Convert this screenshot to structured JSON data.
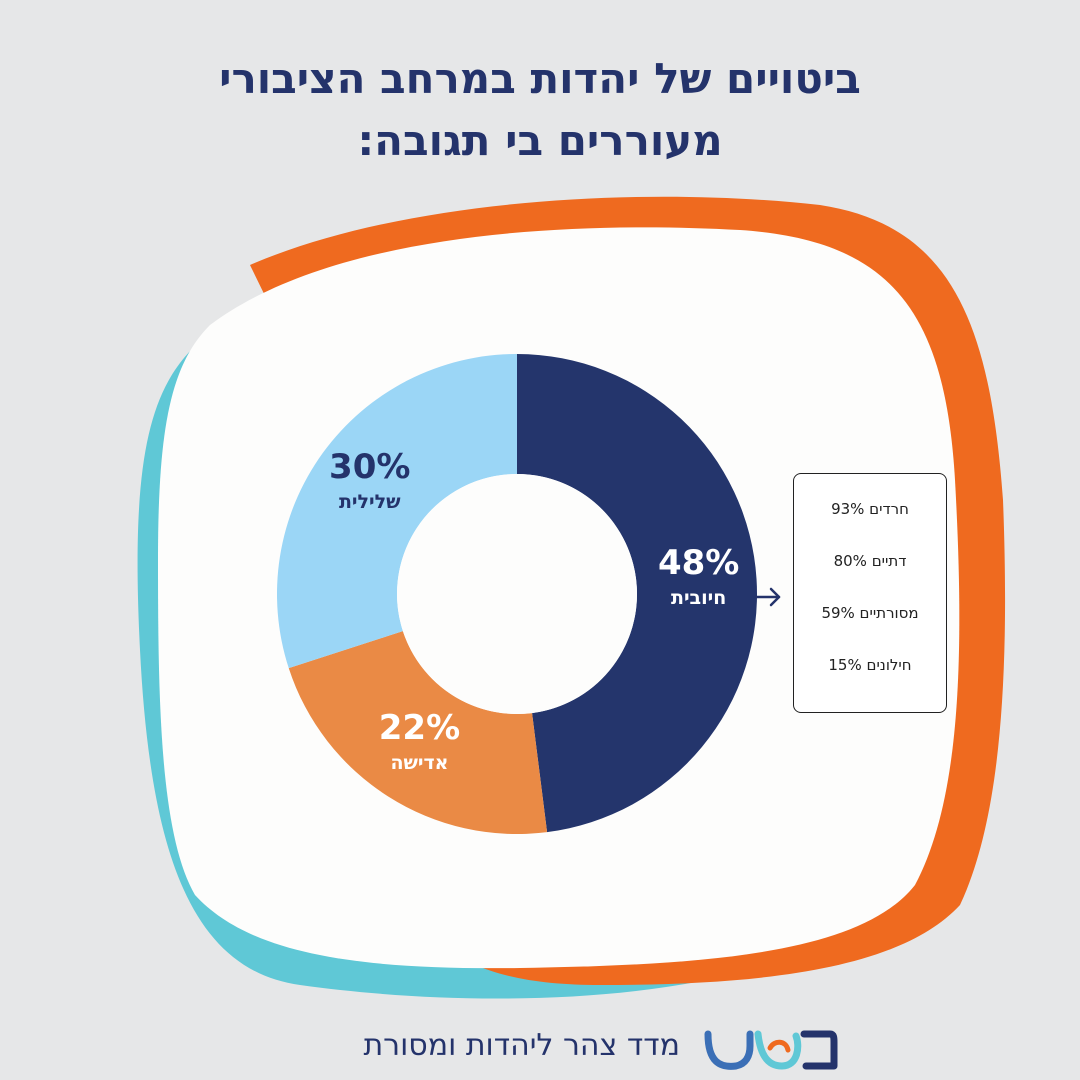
{
  "title": {
    "line1": "ביטויים של יהדות במרחב הציבורי",
    "line2": "מעוררים בי תגובה:"
  },
  "colors": {
    "background": "#e6e7e8",
    "title": "#24336b",
    "frame_orange": "#ef6a1f",
    "frame_teal": "#5fc8d6",
    "frame_fill": "#fdfdfc"
  },
  "chart_data": {
    "type": "pie",
    "donut": true,
    "slices": [
      {
        "label": "חיובית",
        "value": 48,
        "display": "48%",
        "color": "#24356c",
        "text_color": "#ffffff"
      },
      {
        "label": "אדישה",
        "value": 22,
        "display": "22%",
        "color": "#ea8a45",
        "text_color": "#ffffff"
      },
      {
        "label": "שלילית",
        "value": 30,
        "display": "30%",
        "color": "#9bd6f6",
        "text_color": "#24336b"
      }
    ]
  },
  "breakdown": {
    "rows": [
      "חרדים 93%",
      "דתיים 80%",
      "מסורתיים 59%",
      "חילונים 15%"
    ]
  },
  "footer": {
    "text": "מדד צהר ליהדות ומסורת",
    "logo_icon": "mashav-logo-icon"
  }
}
